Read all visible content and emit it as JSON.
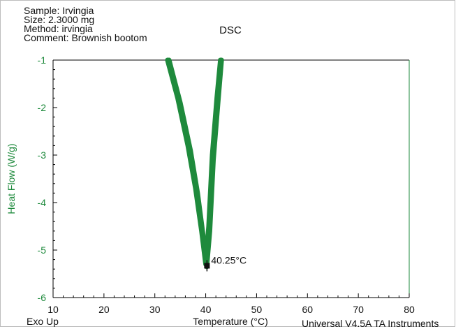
{
  "header": {
    "sample": "Sample: Irvingia",
    "size": "Size:  2.3000 mg",
    "method": "Method: irvingia",
    "comment": "Comment: Brownish bootom"
  },
  "footer": {
    "exo": "Exo Up",
    "software": "Universal V4.5A TA Instruments"
  },
  "colors": {
    "curve": "#1e8a3c",
    "axis": "#000000",
    "ylabel": "#1e8a3c",
    "marker": "#111111"
  },
  "chart_data": {
    "type": "line",
    "title": "DSC",
    "xlabel": "Temperature (°C)",
    "ylabel": "Heat Flow (W/g)",
    "xlim": [
      10,
      80
    ],
    "ylim": [
      -6,
      -1
    ],
    "xticks": [
      "10",
      "20",
      "30",
      "40",
      "50",
      "60",
      "70",
      "80"
    ],
    "yticks": [
      "-1",
      "-2",
      "-3",
      "-4",
      "-5",
      "-6"
    ],
    "grid": false,
    "series": [
      {
        "x": [
          32.5,
          34.5,
          36.5,
          38.0,
          39.2,
          40.0,
          40.6,
          41.3,
          42.2,
          42.9
        ],
        "y": [
          -1.0,
          -1.8,
          -2.8,
          -3.7,
          -4.6,
          -5.3,
          -4.5,
          -3.0,
          -1.8,
          -1.0
        ]
      },
      {
        "x": [
          32.8,
          35.0,
          37.0,
          38.4,
          39.5,
          40.2,
          40.8,
          41.5,
          42.4,
          43.1
        ],
        "y": [
          -1.0,
          -1.9,
          -2.9,
          -3.8,
          -4.7,
          -5.35,
          -4.6,
          -3.1,
          -1.9,
          -1.0
        ]
      }
    ],
    "annotations": [
      {
        "label": "40.25°C",
        "x": 40.25,
        "y": -5.33
      }
    ]
  }
}
